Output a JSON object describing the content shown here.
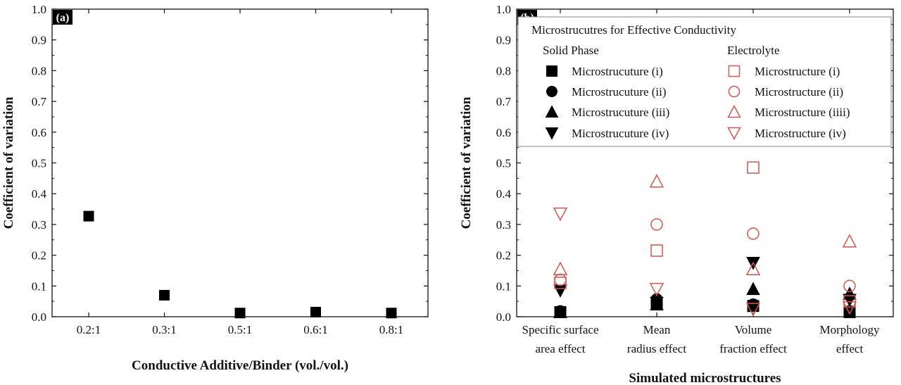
{
  "colors": {
    "solid": "#000000",
    "electrolyte": "#d9534f",
    "axis": "#111111",
    "panel_tag_bg": "#000000"
  },
  "chart_data": [
    {
      "id": "a",
      "type": "scatter",
      "panel_label": "(a)",
      "xlabel": "Conductive Additive/Binder (vol./vol.)",
      "ylabel": "Coefficient of variation",
      "ylim": [
        0,
        1.0
      ],
      "yticks": [
        "0.0",
        "0.1",
        "0.2",
        "0.3",
        "0.4",
        "0.5",
        "0.6",
        "0.7",
        "0.8",
        "0.9",
        "1.0"
      ],
      "categories": [
        "0.2:1",
        "0.3:1",
        "0.5:1",
        "0.6:1",
        "0.8:1"
      ],
      "series": [
        {
          "name": "Coefficient of variation",
          "marker": "square-filled",
          "values": [
            0.327,
            0.07,
            0.012,
            0.015,
            0.012
          ]
        }
      ]
    },
    {
      "id": "b",
      "type": "scatter",
      "panel_label": "(b)",
      "xlabel": "Simulated microstructures",
      "ylabel": "Coefficient of variation",
      "ylim": [
        0,
        1.0
      ],
      "yticks": [
        "0.0",
        "0.1",
        "0.2",
        "0.3",
        "0.4",
        "0.5",
        "0.6",
        "0.7",
        "0.8",
        "0.9",
        "1.0"
      ],
      "categories": [
        [
          "Specific surface",
          "area effect"
        ],
        [
          "Mean",
          "radius effect"
        ],
        [
          "Volume",
          "fraction effect"
        ],
        [
          "Morphology",
          "effect"
        ]
      ],
      "legend": {
        "title": "Microstrucutres for Effective Conductivity",
        "groups": [
          "Solid Phase",
          "Electrolyte"
        ]
      },
      "series": [
        {
          "name": "Microstrucuture (i)",
          "group": "Solid Phase",
          "marker": "square-filled",
          "values": [
            0.015,
            0.04,
            0.035,
            0.015
          ]
        },
        {
          "name": "Microstrucuture (ii)",
          "group": "Solid Phase",
          "marker": "circle-filled",
          "values": [
            0.018,
            0.057,
            0.04,
            0.018
          ]
        },
        {
          "name": "Microstrucuture (iii)",
          "group": "Solid Phase",
          "marker": "triangle-up-filled",
          "values": [
            0.015,
            0.04,
            0.09,
            0.075
          ]
        },
        {
          "name": "Microstrucuture (iv)",
          "group": "Solid Phase",
          "marker": "triangle-down-filled",
          "values": [
            0.085,
            0.045,
            0.175,
            0.055
          ]
        },
        {
          "name": "Microstructure (i)",
          "group": "Electrolyte",
          "marker": "square-open",
          "values": [
            0.11,
            0.215,
            0.485,
            0.05
          ]
        },
        {
          "name": "Microstructure (ii)",
          "group": "Electrolyte",
          "marker": "circle-open",
          "values": [
            0.12,
            0.3,
            0.27,
            0.1
          ]
        },
        {
          "name": "Microstructure (iiii)",
          "group": "Electrolyte",
          "marker": "triangle-up-open",
          "values": [
            0.155,
            0.44,
            0.155,
            0.245
          ]
        },
        {
          "name": "Microstructure (iv)",
          "group": "Electrolyte",
          "marker": "triangle-down-open",
          "values": [
            0.335,
            0.09,
            0.025,
            0.03
          ]
        }
      ]
    }
  ]
}
